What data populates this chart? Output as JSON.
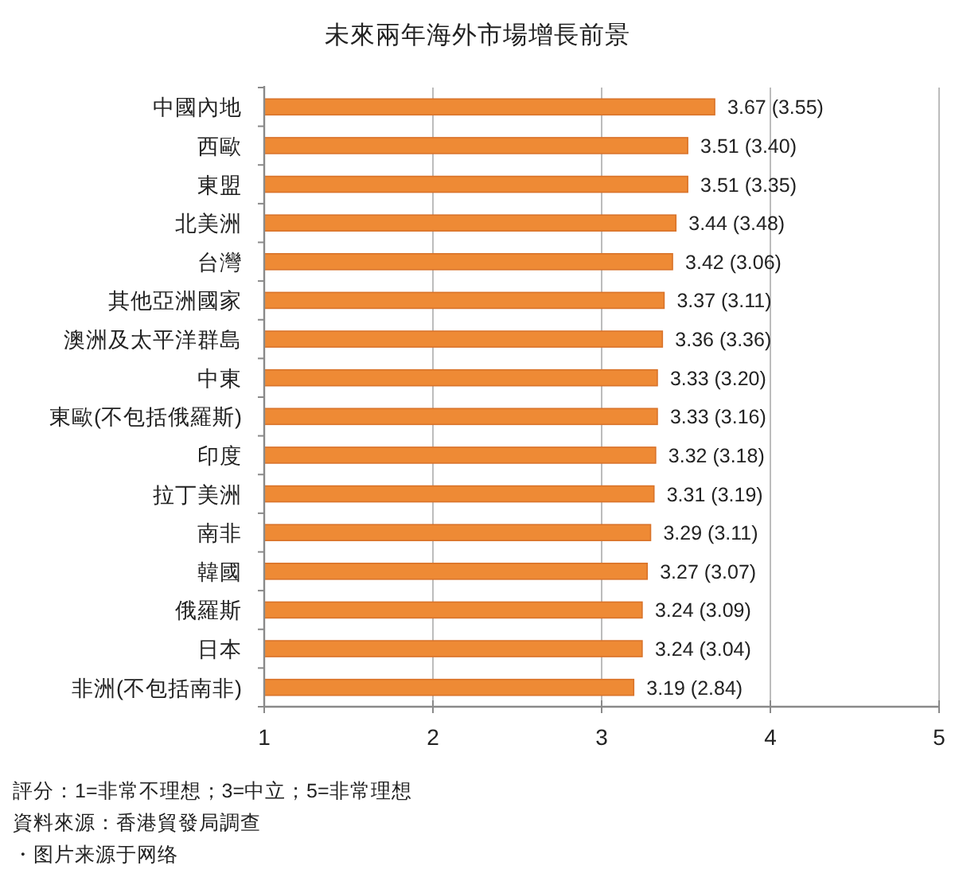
{
  "chart_data": {
    "type": "bar",
    "orientation": "horizontal",
    "title": "未來兩年海外市場增長前景",
    "categories": [
      "中國內地",
      "西歐",
      "東盟",
      "北美洲",
      "台灣",
      "其他亞洲國家",
      "澳洲及太平洋群島",
      "中東",
      "東歐(不包括俄羅斯)",
      "印度",
      "拉丁美洲",
      "南非",
      "韓國",
      "俄羅斯",
      "日本",
      "非洲(不包括南非)"
    ],
    "values": [
      3.67,
      3.51,
      3.51,
      3.44,
      3.42,
      3.37,
      3.36,
      3.33,
      3.33,
      3.32,
      3.31,
      3.29,
      3.27,
      3.24,
      3.24,
      3.19
    ],
    "value_labels": [
      "3.67 (3.55)",
      "3.51 (3.40)",
      "3.51 (3.35)",
      "3.44 (3.48)",
      "3.42 (3.06)",
      "3.37 (3.11)",
      "3.36 (3.36)",
      "3.33 (3.20)",
      "3.33 (3.16)",
      "3.32 (3.18)",
      "3.31 (3.19)",
      "3.29 (3.11)",
      "3.27 (3.07)",
      "3.24 (3.09)",
      "3.24 (3.04)",
      "3.19 (2.84)"
    ],
    "color": "#ee8a35",
    "xlim": [
      1,
      5
    ],
    "xticks": [
      1,
      2,
      3,
      4,
      5
    ],
    "grid": "x",
    "annotations": [
      "評分：1=非常不理想；3=中立；5=非常理想",
      "資料來源：香港貿發局調查",
      "・图片来源于网络"
    ]
  }
}
